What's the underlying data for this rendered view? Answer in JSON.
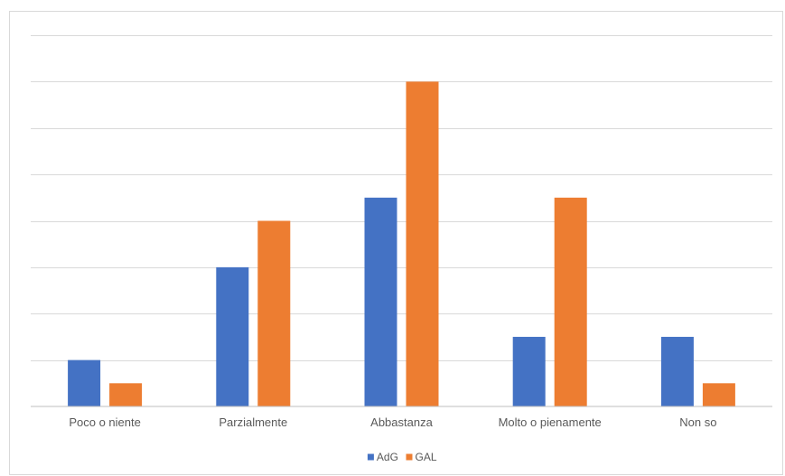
{
  "chart_data": {
    "type": "bar",
    "categories": [
      "Poco o niente",
      "Parzialmente",
      "Abbastanza",
      "Molto o pienamente",
      "Non so"
    ],
    "series": [
      {
        "name": "AdG",
        "values": [
          2,
          6,
          9,
          3,
          3
        ],
        "color": "#4472c4"
      },
      {
        "name": "GAL",
        "values": [
          1,
          8,
          14,
          9,
          1
        ],
        "color": "#ed7d31"
      }
    ],
    "title": "",
    "xlabel": "",
    "ylabel": "",
    "ylim": [
      0,
      16
    ],
    "y_tick_step": 2,
    "y_tick_labels_visible": false,
    "grid": true,
    "gridline_color": "#d9d9d9",
    "legend": "bottom"
  }
}
